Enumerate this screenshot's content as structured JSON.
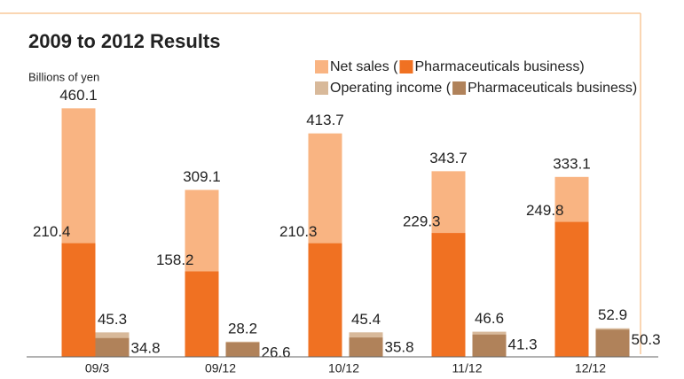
{
  "chart_data": {
    "type": "bar",
    "title": "2009 to 2012 Results",
    "y_label": "Billions of yen",
    "categories": [
      "09/3",
      "09/12",
      "10/12",
      "11/12",
      "12/12"
    ],
    "series": [
      {
        "name": "Net sales (",
        "color": "#f9b482",
        "values": [
          460.1,
          309.1,
          413.7,
          343.7,
          333.1
        ]
      },
      {
        "name": "Pharmaceuticals business)",
        "color": "#f07122",
        "values": [
          210.4,
          158.2,
          210.3,
          229.3,
          249.8
        ]
      },
      {
        "name": "Operating income (",
        "color": "#d8b99a",
        "values": [
          45.3,
          28.2,
          45.4,
          46.6,
          52.9
        ]
      },
      {
        "name": "Pharmaceuticals business)",
        "color": "#b0825a",
        "values": [
          34.8,
          26.6,
          35.8,
          41.3,
          50.3
        ]
      }
    ],
    "ylim": [
      0,
      500
    ]
  }
}
